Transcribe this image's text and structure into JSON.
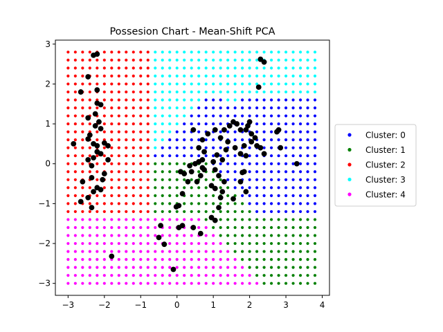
{
  "chart_data": {
    "type": "scatter",
    "title": "Possesion Chart - Mean-Shift PCA",
    "xlabel": "",
    "ylabel": "",
    "xlim": [
      -3.35,
      4.2
    ],
    "ylim": [
      -3.3,
      3.1
    ],
    "x_ticks": [
      -3,
      -2,
      -1,
      0,
      1,
      2,
      3,
      4
    ],
    "y_ticks": [
      -3,
      -2,
      -1,
      0,
      1,
      2,
      3
    ],
    "x_tick_labels": [
      "−3",
      "−2",
      "−1",
      "0",
      "1",
      "2",
      "3",
      "4"
    ],
    "y_tick_labels": [
      "−3",
      "−2",
      "−1",
      "0",
      "1",
      "2",
      "3"
    ],
    "grid": false,
    "legend_position": "right, outside the axes",
    "mesh": {
      "x_start": -3.0,
      "x_step": 0.2,
      "x_count": 35,
      "y_start": -3.0,
      "y_step": 0.2,
      "y_count": 30
    },
    "series": [
      {
        "name": "Cluster: 0",
        "color": "#0000ff"
      },
      {
        "name": "Cluster: 1",
        "color": "#008000"
      },
      {
        "name": "Cluster: 2",
        "color": "#ff0000"
      },
      {
        "name": "Cluster: 3",
        "color": "#00ffff"
      },
      {
        "name": "Cluster: 4",
        "color": "#ff00ff"
      }
    ],
    "observations": {
      "color": "#000000",
      "points": [
        [
          -2.2,
          2.75
        ],
        [
          -2.3,
          2.72
        ],
        [
          2.3,
          2.62
        ],
        [
          2.4,
          2.55
        ],
        [
          2.25,
          1.92
        ],
        [
          -2.45,
          2.18
        ],
        [
          -2.65,
          1.8
        ],
        [
          -2.2,
          1.85
        ],
        [
          -2.2,
          1.52
        ],
        [
          -2.1,
          1.48
        ],
        [
          -2.25,
          1.25
        ],
        [
          -2.45,
          1.15
        ],
        [
          -2.15,
          1.05
        ],
        [
          -2.25,
          0.95
        ],
        [
          -2.1,
          0.88
        ],
        [
          -2.4,
          0.72
        ],
        [
          -2.45,
          0.62
        ],
        [
          -2.85,
          0.5
        ],
        [
          -2.3,
          0.5
        ],
        [
          -2.2,
          0.45
        ],
        [
          -2.0,
          0.52
        ],
        [
          -1.9,
          0.45
        ],
        [
          -2.2,
          0.3
        ],
        [
          -2.1,
          0.25
        ],
        [
          -2.3,
          0.15
        ],
        [
          -2.45,
          0.1
        ],
        [
          -2.35,
          -0.05
        ],
        [
          -1.9,
          0.1
        ],
        [
          -2.6,
          -0.45
        ],
        [
          -2.35,
          -0.35
        ],
        [
          -2.2,
          -0.6
        ],
        [
          -2.1,
          -0.65
        ],
        [
          -2.05,
          -0.4
        ],
        [
          -2.3,
          -0.7
        ],
        [
          -2.45,
          -0.85
        ],
        [
          -2.65,
          -0.95
        ],
        [
          -2.35,
          -1.1
        ],
        [
          -2.0,
          -0.25
        ],
        [
          -1.8,
          -2.32
        ],
        [
          -0.45,
          -1.55
        ],
        [
          -0.5,
          -1.85
        ],
        [
          -0.35,
          -2.02
        ],
        [
          -0.1,
          -2.65
        ],
        [
          0.05,
          -1.05
        ],
        [
          -0.02,
          -1.08
        ],
        [
          0.15,
          -0.75
        ],
        [
          0.2,
          -0.25
        ],
        [
          0.1,
          -0.2
        ],
        [
          0.35,
          -0.05
        ],
        [
          0.3,
          -0.45
        ],
        [
          0.55,
          -0.45
        ],
        [
          0.7,
          -0.1
        ],
        [
          0.6,
          0.05
        ],
        [
          0.75,
          -0.15
        ],
        [
          0.65,
          -0.3
        ],
        [
          0.5,
          0.0
        ],
        [
          0.4,
          -0.2
        ],
        [
          0.45,
          -1.6
        ],
        [
          0.05,
          -1.6
        ],
        [
          0.15,
          -1.55
        ],
        [
          0.65,
          -1.75
        ],
        [
          0.95,
          -1.35
        ],
        [
          1.05,
          -1.42
        ],
        [
          1.15,
          -1.1
        ],
        [
          1.2,
          -0.85
        ],
        [
          1.25,
          -0.7
        ],
        [
          1.05,
          -0.62
        ],
        [
          0.95,
          -0.55
        ],
        [
          1.3,
          -0.45
        ],
        [
          1.55,
          -0.88
        ],
        [
          1.75,
          -0.45
        ],
        [
          1.0,
          0.05
        ],
        [
          1.05,
          -0.15
        ],
        [
          1.15,
          -0.3
        ],
        [
          1.1,
          0.22
        ],
        [
          1.25,
          0.1
        ],
        [
          1.35,
          0.35
        ],
        [
          1.4,
          0.55
        ],
        [
          1.2,
          0.65
        ],
        [
          1.05,
          0.85
        ],
        [
          0.85,
          0.75
        ],
        [
          0.7,
          0.6
        ],
        [
          0.75,
          0.3
        ],
        [
          0.45,
          0.85
        ],
        [
          0.6,
          0.4
        ],
        [
          0.7,
          0.1
        ],
        [
          1.3,
          0.85
        ],
        [
          1.45,
          0.95
        ],
        [
          1.55,
          1.05
        ],
        [
          1.65,
          1.0
        ],
        [
          1.75,
          0.85
        ],
        [
          1.9,
          0.85
        ],
        [
          2.0,
          1.05
        ],
        [
          2.05,
          0.75
        ],
        [
          2.15,
          0.65
        ],
        [
          2.05,
          0.55
        ],
        [
          1.85,
          0.45
        ],
        [
          1.75,
          0.25
        ],
        [
          1.6,
          0.4
        ],
        [
          1.9,
          0.2
        ],
        [
          2.2,
          0.45
        ],
        [
          2.4,
          0.25
        ],
        [
          2.3,
          0.4
        ],
        [
          2.8,
          0.85
        ],
        [
          2.75,
          0.8
        ],
        [
          2.85,
          0.4
        ],
        [
          3.3,
          0.0
        ],
        [
          1.85,
          -0.2
        ],
        [
          1.8,
          -0.22
        ],
        [
          1.9,
          -0.7
        ],
        [
          1.95,
          0.95
        ]
      ]
    }
  }
}
